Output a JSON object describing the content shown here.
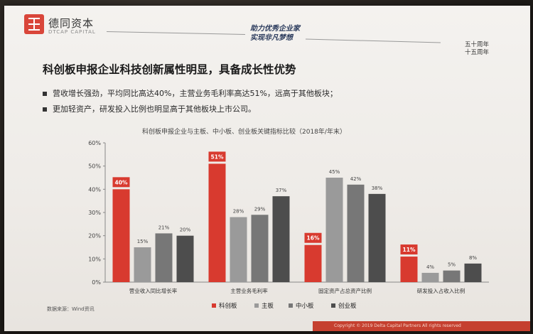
{
  "brand": {
    "name": "德同资本",
    "sub": "DTCAP CAPITAL"
  },
  "slogan": {
    "line1": "助力优秀企业家",
    "line2": "实现非凡梦想"
  },
  "anniversary": {
    "line1": "五十周年",
    "line2": "十五周年"
  },
  "heading": "科创板申报企业科技创新属性明显，具备成长性优势",
  "bullets": [
    "营收增长强劲，平均同比高达40%，主营业务毛利率高达51%，远高于其他板块；",
    "更加轻资产，研发投入比例也明显高于其他板块上市公司。"
  ],
  "source": "数据来源：Wind资讯",
  "footer": "Copyright © 2019 Delta Capital Partners All rights reserved",
  "colors": {
    "series": [
      "#d83a2f",
      "#9a9a9a",
      "#777777",
      "#4d4d4d"
    ]
  },
  "chart_data": {
    "type": "bar",
    "title": "科创板申报企业与主板、中小板、创业板关键指标比较（2018年/年末）",
    "categories": [
      "营业收入同比增长率",
      "主营业务毛利率",
      "固定资产占总资产比例",
      "研发投入占收入比例"
    ],
    "series": [
      {
        "name": "科创板",
        "values": [
          40,
          51,
          16,
          11
        ]
      },
      {
        "name": "主板",
        "values": [
          15,
          28,
          45,
          4
        ]
      },
      {
        "name": "中小板",
        "values": [
          21,
          29,
          42,
          5
        ]
      },
      {
        "name": "创业板",
        "values": [
          20,
          37,
          38,
          8
        ]
      }
    ],
    "ylim": [
      0,
      60
    ],
    "yticks": [
      "0%",
      "10%",
      "20%",
      "30%",
      "40%",
      "50%",
      "60%"
    ],
    "value_labels": [
      [
        "40%",
        "15%",
        "21%",
        "20%"
      ],
      [
        "51%",
        "28%",
        "29%",
        "37%"
      ],
      [
        "16%",
        "45%",
        "42%",
        "38%"
      ],
      [
        "11%",
        "4%",
        "5%",
        "8%"
      ]
    ],
    "legend_position": "bottom"
  }
}
